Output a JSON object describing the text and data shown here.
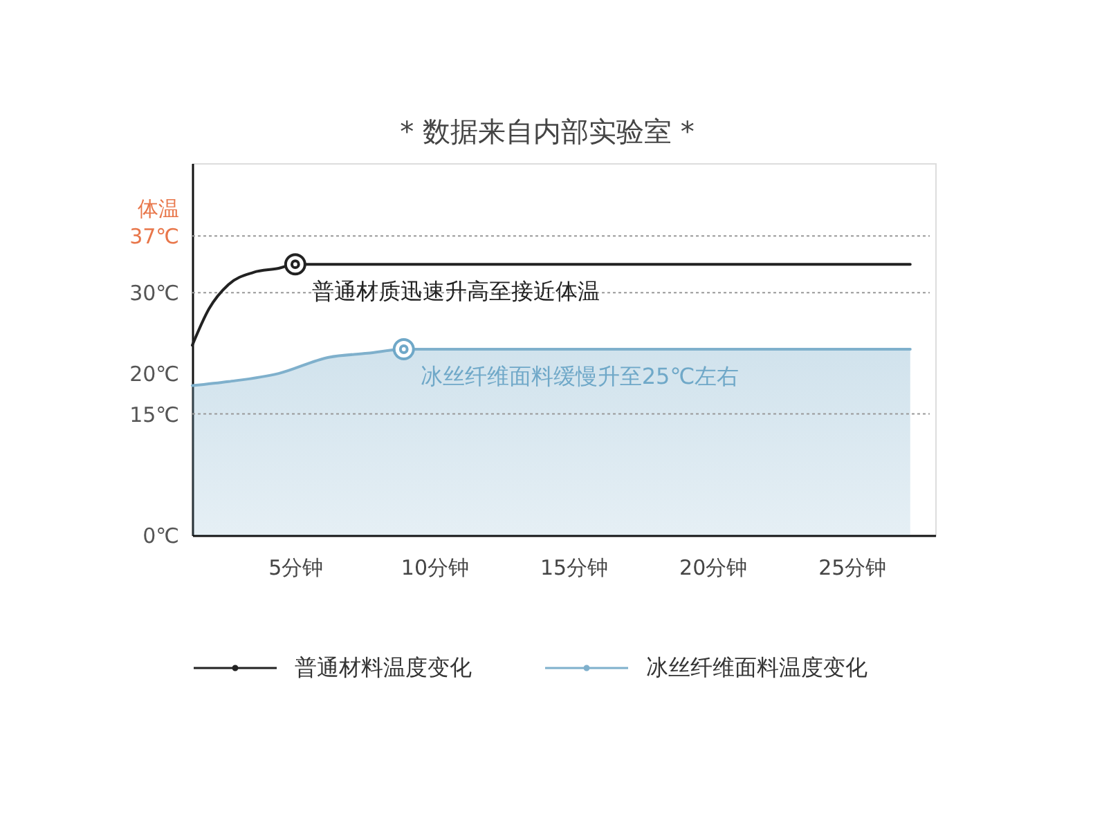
{
  "chart_data": {
    "type": "line",
    "title": "* 数据来自内部实验室 *",
    "ylabel": "体温",
    "xlim": [
      1.3,
      28
    ],
    "xticks": [
      {
        "value": 5,
        "label": "5分钟"
      },
      {
        "value": 10,
        "label": "10分钟"
      },
      {
        "value": 15,
        "label": "15分钟"
      },
      {
        "value": 20,
        "label": "20分钟"
      },
      {
        "value": 25,
        "label": "25分钟"
      }
    ],
    "ylim": [
      0,
      46
    ],
    "yticks": [
      {
        "value": 0,
        "label": "0℃"
      },
      {
        "value": 15,
        "label": "15℃"
      },
      {
        "value": 20,
        "label": "20℃"
      },
      {
        "value": 30,
        "label": "30℃"
      },
      {
        "value": 37,
        "label": "37℃"
      }
    ],
    "series": [
      {
        "name": "普通材料温度变化",
        "color": "#222222",
        "x": [
          1.3,
          1.9,
          2.6,
          3.5,
          4.4,
          5,
          27.1
        ],
        "values": [
          23.5,
          28,
          31,
          32.5,
          33,
          33.5,
          33.5
        ]
      },
      {
        "name": "冰丝纤维面料温度变化",
        "type": "area",
        "color": "#7fb0cc",
        "x": [
          1.3,
          2.6,
          4.4,
          6.2,
          7.6,
          8.9,
          27.1
        ],
        "values": [
          18.5,
          19,
          20,
          22,
          22.5,
          23,
          23
        ]
      },
      {
        "type": "scatter",
        "color": "#222222",
        "x": [
          5
        ],
        "values": [
          33.5
        ]
      },
      {
        "type": "scatter",
        "color": "#6fa8c8",
        "x": [
          8.9
        ],
        "values": [
          23
        ]
      }
    ],
    "ref_lines": [
      {
        "axis": "y",
        "value": 37,
        "color": "#999999",
        "line_style": "dotted"
      },
      {
        "axis": "y",
        "value": 30,
        "color": "#999999",
        "line_style": "dotted"
      },
      {
        "axis": "y",
        "value": 15,
        "color": "#999999",
        "line_style": "dotted"
      }
    ],
    "annotations": [
      {
        "text": "普通材质迅速升高至接近体温",
        "x": 5,
        "y": 33.5
      },
      {
        "text": "冰丝纤维面料缓慢升至25℃左右",
        "x": 8.9,
        "y": 23
      }
    ],
    "legend": "bottom"
  }
}
